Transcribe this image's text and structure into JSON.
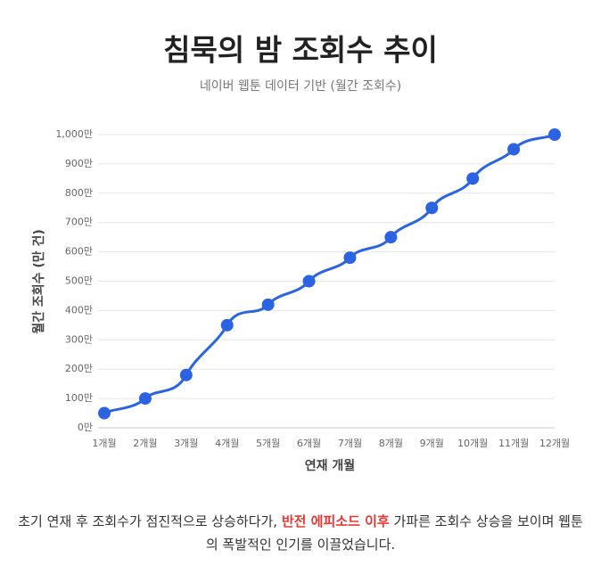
{
  "chart_data": {
    "type": "line",
    "title": "침묵의 밤 조회수 추이",
    "subtitle": "네이버 웹툰 데이터 기반 (월간 조회수)",
    "x_label": "연재 개월",
    "y_label": "월간 조회수 (만 건)",
    "categories": [
      "1개월",
      "2개월",
      "3개월",
      "4개월",
      "5개월",
      "6개월",
      "7개월",
      "8개월",
      "9개월",
      "10개월",
      "11개월",
      "12개월"
    ],
    "values": [
      50,
      100,
      180,
      350,
      420,
      500,
      580,
      650,
      750,
      850,
      950,
      1000
    ],
    "color": "#2b63e3",
    "ylim": [
      0,
      1000
    ],
    "yticks": [
      {
        "value": 0,
        "label": "0만"
      },
      {
        "value": 100,
        "label": "100만"
      },
      {
        "value": 200,
        "label": "200만"
      },
      {
        "value": 300,
        "label": "300만"
      },
      {
        "value": 400,
        "label": "400만"
      },
      {
        "value": 500,
        "label": "500만"
      },
      {
        "value": 600,
        "label": "600만"
      },
      {
        "value": 700,
        "label": "700만"
      },
      {
        "value": 800,
        "label": "800만"
      },
      {
        "value": 900,
        "label": "900만"
      },
      {
        "value": 1000,
        "label": "1,000만"
      }
    ],
    "grid": true,
    "note": {
      "before": "초기 연재 후 조회수가 점진적으로 상승하다가, ",
      "highlight": "반전 에피소드 이후",
      "after": " 가파른 조회수 상승을 보이며 웹툰의 폭발적인 인기를 이끌었습니다."
    }
  }
}
